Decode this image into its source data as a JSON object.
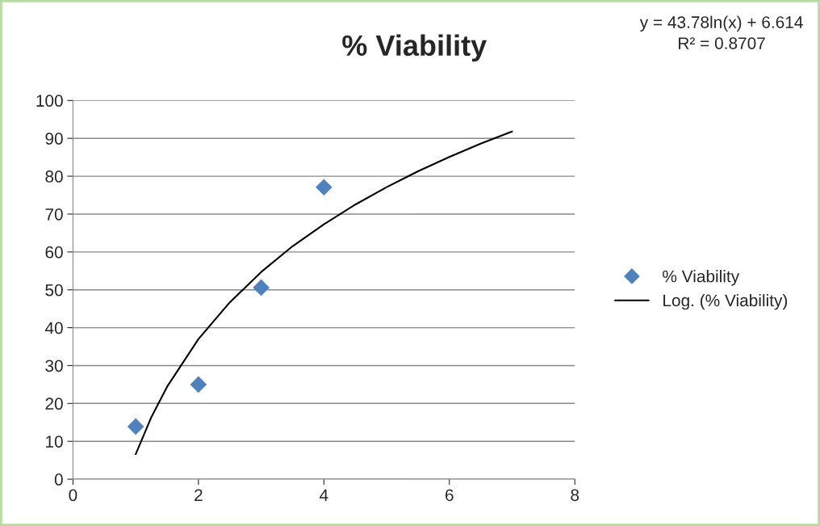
{
  "chart_data": {
    "type": "scatter",
    "title": "% Viability",
    "annotations": [
      "y = 43.78ln(x) + 6.614",
      "R² = 0.8707"
    ],
    "series": [
      {
        "name": "% Viability",
        "color": "#4f81bd",
        "marker": "diamond",
        "x": [
          1,
          2,
          3,
          4
        ],
        "values": [
          13.9,
          25.0,
          50.6,
          77.1
        ]
      },
      {
        "name": "Log. (% Viability)",
        "type": "line",
        "color": "#000000",
        "line_style": "solid",
        "x": [
          1,
          1.25,
          1.5,
          2,
          2.5,
          3,
          3.5,
          4,
          4.5,
          5,
          5.5,
          6,
          6.5,
          7
        ],
        "values": [
          6.6,
          16.4,
          24.4,
          37.0,
          46.7,
          54.7,
          61.5,
          67.3,
          72.5,
          77.1,
          81.3,
          85.1,
          88.6,
          91.8
        ]
      }
    ],
    "xlim": [
      0,
      8
    ],
    "xticks": [
      0,
      2,
      4,
      6,
      8
    ],
    "ylim": [
      0,
      100
    ],
    "yticks": [
      0,
      10,
      20,
      30,
      40,
      50,
      60,
      70,
      80,
      90,
      100
    ],
    "grid": "y",
    "legend": "right"
  }
}
